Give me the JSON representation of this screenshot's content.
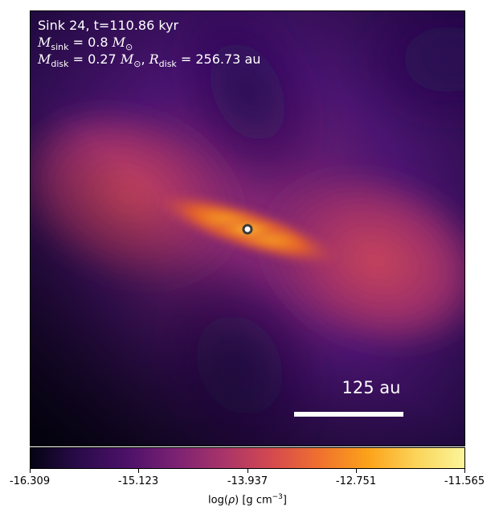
{
  "annotation": {
    "line1": "Sink 24, t=110.86 kyr",
    "msink_sym": "M",
    "msink_sub": "sink",
    "msink_eq": " = 0.8 ",
    "msink_unit_sym": "M",
    "msink_unit_sub": "⊙",
    "mdisk_sym": "M",
    "mdisk_sub": "disk",
    "mdisk_eq": " = 0.27 ",
    "mdisk_unit_sym": "M",
    "mdisk_unit_sub": "⊙",
    "sep": ", ",
    "rdisk_sym": "R",
    "rdisk_sub": "disk",
    "rdisk_eq": " = 256.73 au"
  },
  "scalebar": {
    "label": "125 au"
  },
  "colorbar": {
    "ticks": [
      "-16.309",
      "-15.123",
      "-13.937",
      "-12.751",
      "-11.565"
    ],
    "label_pre": "log(",
    "label_rho": "ρ",
    "label_mid": ") [g cm",
    "label_sup": "−3",
    "label_post": "]",
    "colormap": "inferno-like",
    "colors": [
      "#050314",
      "#2a0b4a",
      "#4c1169",
      "#7b2173",
      "#a8346a",
      "#d4494f",
      "#f0712e",
      "#fca21a",
      "#fbd45a",
      "#fbf59a"
    ]
  },
  "image": {
    "sink_marker_color": "#ffffff",
    "sink_marker_edge": "#3a3a3a"
  }
}
